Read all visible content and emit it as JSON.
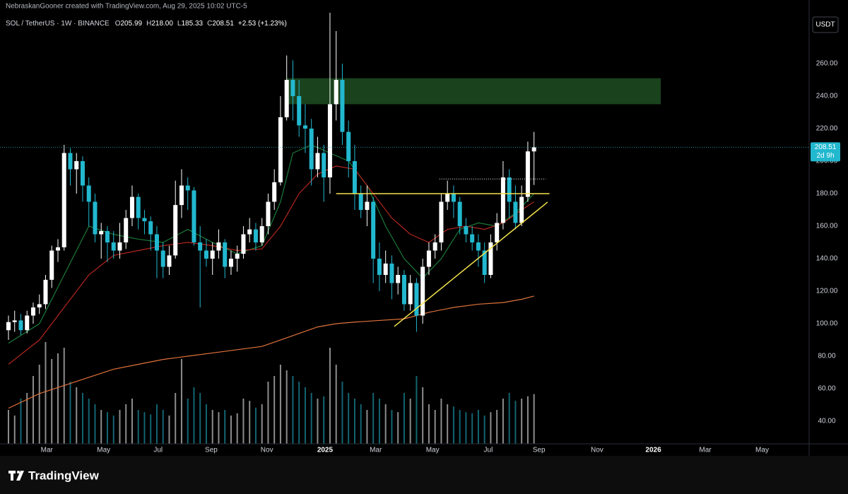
{
  "header": {
    "credit": "NebraskanGooner created with TradingView.com, Aug 29, 2025 10:02 UTC-5",
    "symbol": "SOL / TetherUS · 1W · BINANCE",
    "ohlc": [
      {
        "key": "O",
        "value": "205.99"
      },
      {
        "key": "H",
        "value": "218.00"
      },
      {
        "key": "L",
        "value": "185.33"
      },
      {
        "key": "C",
        "value": "208.51"
      }
    ],
    "change": "+2.53 (+1.23%)",
    "currency": "USDT"
  },
  "footer": {
    "brand": "TradingView"
  },
  "chart_data": {
    "type": "candlestick",
    "open": [
      96,
      101,
      102,
      96,
      105,
      110,
      112,
      127,
      145,
      147,
      205,
      195,
      200,
      185,
      175,
      155,
      157,
      150,
      145,
      150,
      165,
      178,
      165,
      163,
      155,
      145,
      135,
      142,
      173,
      185,
      182,
      150,
      145,
      140,
      145,
      150,
      135,
      140,
      143,
      155,
      158,
      150,
      160,
      175,
      187,
      227,
      250,
      240,
      222,
      220,
      195,
      205,
      190,
      235,
      250,
      218,
      200,
      180,
      170,
      175,
      140,
      130,
      137,
      125,
      130,
      112,
      125,
      105,
      135,
      145,
      150,
      175,
      180,
      175,
      160,
      155,
      150,
      145,
      130,
      150,
      162,
      190,
      175,
      162,
      178,
      205.99
    ],
    "high": [
      105,
      108,
      106,
      108,
      113,
      118,
      130,
      148,
      152,
      210,
      208,
      205,
      203,
      190,
      180,
      162,
      160,
      157,
      162,
      170,
      185,
      180,
      170,
      166,
      160,
      150,
      148,
      188,
      195,
      190,
      184,
      160,
      152,
      150,
      158,
      152,
      145,
      148,
      160,
      165,
      162,
      165,
      180,
      195,
      240,
      265,
      262,
      250,
      235,
      226,
      215,
      210,
      292,
      280,
      260,
      225,
      210,
      185,
      185,
      178,
      150,
      145,
      142,
      135,
      133,
      130,
      128,
      140,
      150,
      155,
      180,
      188,
      185,
      178,
      165,
      160,
      155,
      150,
      155,
      168,
      200,
      195,
      185,
      185,
      212,
      218
    ],
    "low": [
      90,
      95,
      93,
      94,
      100,
      106,
      109,
      122,
      138,
      145,
      185,
      180,
      175,
      160,
      150,
      140,
      138,
      140,
      140,
      146,
      160,
      158,
      155,
      145,
      128,
      128,
      130,
      140,
      165,
      170,
      148,
      110,
      135,
      130,
      140,
      128,
      130,
      132,
      140,
      150,
      145,
      148,
      155,
      170,
      185,
      225,
      225,
      215,
      205,
      185,
      190,
      175,
      180,
      225,
      210,
      190,
      170,
      165,
      160,
      125,
      120,
      125,
      115,
      118,
      108,
      108,
      95,
      100,
      130,
      140,
      145,
      170,
      165,
      155,
      150,
      145,
      135,
      125,
      128,
      145,
      158,
      165,
      158,
      160,
      175,
      185.33
    ],
    "close": [
      101,
      102,
      96,
      105,
      110,
      112,
      127,
      145,
      147,
      205,
      195,
      200,
      185,
      175,
      155,
      157,
      150,
      145,
      150,
      165,
      178,
      165,
      163,
      155,
      145,
      135,
      142,
      173,
      185,
      182,
      150,
      145,
      140,
      145,
      150,
      135,
      140,
      143,
      155,
      158,
      150,
      160,
      175,
      187,
      227,
      250,
      240,
      222,
      220,
      195,
      205,
      190,
      235,
      250,
      218,
      200,
      180,
      170,
      175,
      140,
      130,
      137,
      125,
      130,
      112,
      125,
      105,
      135,
      145,
      150,
      175,
      180,
      175,
      160,
      155,
      150,
      145,
      130,
      150,
      162,
      190,
      175,
      162,
      178,
      206,
      208.51
    ],
    "volume": [
      30,
      25,
      40,
      45,
      60,
      70,
      90,
      75,
      80,
      85,
      55,
      50,
      45,
      40,
      35,
      30,
      28,
      25,
      30,
      35,
      40,
      30,
      28,
      26,
      35,
      30,
      25,
      45,
      75,
      40,
      50,
      45,
      35,
      30,
      28,
      30,
      25,
      27,
      40,
      38,
      32,
      35,
      55,
      60,
      70,
      65,
      60,
      55,
      50,
      45,
      40,
      42,
      85,
      70,
      55,
      45,
      40,
      35,
      30,
      45,
      40,
      35,
      30,
      28,
      45,
      40,
      60,
      50,
      35,
      30,
      40,
      35,
      33,
      30,
      28,
      27,
      30,
      25,
      28,
      30,
      40,
      45,
      38,
      40,
      42,
      44
    ],
    "volume_lim": [
      0,
      100
    ],
    "up_color": "#ffffff",
    "down_color": "#22b8cf",
    "moving_averages": [
      {
        "color": "#1b7a3a",
        "x": [
          0,
          5,
          9,
          13,
          17,
          21,
          25,
          29,
          33,
          37,
          41,
          44,
          46,
          49,
          52,
          55,
          58,
          61,
          64,
          67,
          70,
          73,
          76,
          79,
          82,
          85
        ],
        "values": [
          88,
          100,
          130,
          160,
          155,
          152,
          150,
          158,
          150,
          143,
          148,
          175,
          205,
          210,
          205,
          200,
          185,
          160,
          140,
          128,
          140,
          158,
          162,
          160,
          168,
          180
        ]
      },
      {
        "color": "#b3261e",
        "x": [
          0,
          5,
          9,
          13,
          17,
          21,
          25,
          29,
          33,
          37,
          41,
          44,
          47,
          50,
          53,
          56,
          59,
          62,
          65,
          68,
          71,
          74,
          77,
          80,
          83,
          85
        ],
        "values": [
          75,
          90,
          110,
          130,
          142,
          145,
          148,
          150,
          148,
          145,
          146,
          160,
          180,
          192,
          197,
          195,
          180,
          165,
          155,
          150,
          158,
          160,
          158,
          162,
          170,
          175
        ]
      },
      {
        "color": "#e0733a",
        "x": [
          0,
          5,
          9,
          13,
          17,
          21,
          25,
          29,
          33,
          37,
          41,
          44,
          47,
          50,
          53,
          56,
          60,
          64,
          68,
          72,
          76,
          80,
          83,
          85
        ],
        "values": [
          48,
          57,
          62,
          67,
          72,
          75,
          78,
          80,
          82,
          84,
          86,
          90,
          94,
          98,
          100,
          101,
          102,
          103,
          107,
          110,
          112,
          113,
          115,
          117
        ]
      }
    ],
    "annotations": {
      "zone": {
        "x": [
          45,
          105.5
        ],
        "y": [
          235,
          251
        ],
        "color": "#1e4d22"
      },
      "resistance": {
        "x": [
          53,
          87.5
        ],
        "y": 180,
        "color": "#f2e14c"
      },
      "dotted": {
        "x": [
          69.7,
          86.9
        ],
        "y": 189,
        "color": "#ffffff"
      },
      "trend": {
        "x": [
          62.4,
          87.2
        ],
        "y": [
          98.3,
          174.8
        ],
        "color": "#f2e14c"
      }
    },
    "last_price_label": "208.51",
    "countdown": "2d 9h",
    "xlim": [
      -1.37,
      129.5
    ],
    "xticks": [
      {
        "value": 6.2,
        "label": "Mar"
      },
      {
        "value": 15.4,
        "label": "May"
      },
      {
        "value": 24.2,
        "label": "Jul"
      },
      {
        "value": 32.8,
        "label": "Sep"
      },
      {
        "value": 41.8,
        "label": "Nov"
      },
      {
        "value": 51.2,
        "label": "2025"
      },
      {
        "value": 59.4,
        "label": "Mar"
      },
      {
        "value": 68.6,
        "label": "May"
      },
      {
        "value": 77.6,
        "label": "Jul"
      },
      {
        "value": 85.8,
        "label": "Sep"
      },
      {
        "value": 95.2,
        "label": "Nov"
      },
      {
        "value": 104.3,
        "label": "2026"
      },
      {
        "value": 112.7,
        "label": "Mar"
      },
      {
        "value": 121.9,
        "label": "May"
      }
    ],
    "ylim": [
      26.1,
      291.3
    ],
    "yticks": [
      {
        "value": 40,
        "label": "40.00"
      },
      {
        "value": 60,
        "label": "60.00"
      },
      {
        "value": 80,
        "label": "80.00"
      },
      {
        "value": 100,
        "label": "100.00"
      },
      {
        "value": 120,
        "label": "120.00"
      },
      {
        "value": 140,
        "label": "140.00"
      },
      {
        "value": 160,
        "label": "160.00"
      },
      {
        "value": 180,
        "label": "180.00"
      },
      {
        "value": 200,
        "label": "200.00"
      },
      {
        "value": 220,
        "label": "220.00"
      },
      {
        "value": 240,
        "label": "240.00"
      },
      {
        "value": 260,
        "label": "260.00"
      }
    ],
    "grid": false
  }
}
